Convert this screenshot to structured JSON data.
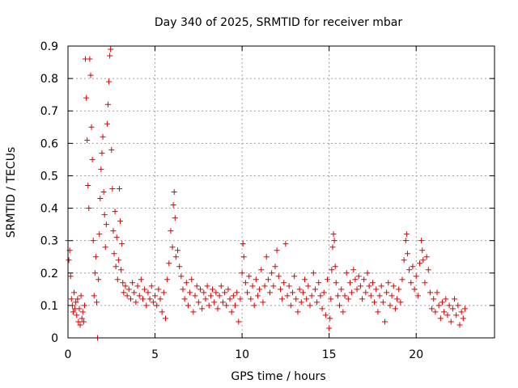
{
  "chart_data": {
    "type": "scatter",
    "title": "Day 340 of 2025, SRMTID for receiver mbar",
    "xlabel": "GPS time / hours",
    "ylabel": "SRMTID / TECUs",
    "xlim": [
      0,
      24.5
    ],
    "ylim": [
      0,
      0.9
    ],
    "x_ticks": [
      0,
      5,
      10,
      15,
      20
    ],
    "x_tick_labels": [
      "0",
      "5",
      "10",
      "15",
      "20"
    ],
    "y_ticks": [
      0,
      0.1,
      0.2,
      0.3,
      0.4,
      0.5,
      0.6,
      0.7,
      0.8,
      0.9
    ],
    "y_tick_labels": [
      "0",
      "0.1",
      "0.2",
      "0.3",
      "0.4",
      "0.5",
      "0.6",
      "0.7",
      "0.8",
      "0.9"
    ],
    "grid": true,
    "marker": "+",
    "color": "#e00000",
    "series": [
      {
        "name": "SRMTID",
        "points": [
          [
            0.0,
            0.3
          ],
          [
            0.05,
            0.24
          ],
          [
            0.1,
            0.27
          ],
          [
            0.15,
            0.19
          ],
          [
            0.2,
            0.12
          ],
          [
            0.25,
            0.1
          ],
          [
            0.3,
            0.08
          ],
          [
            0.35,
            0.14
          ],
          [
            0.4,
            0.09
          ],
          [
            0.45,
            0.11
          ],
          [
            0.5,
            0.07
          ],
          [
            0.55,
            0.12
          ],
          [
            0.6,
            0.05
          ],
          [
            0.65,
            0.09
          ],
          [
            0.7,
            0.04
          ],
          [
            0.75,
            0.13
          ],
          [
            0.8,
            0.06
          ],
          [
            0.85,
            0.08
          ],
          [
            0.9,
            0.05
          ],
          [
            0.95,
            0.1
          ],
          [
            1.0,
            0.86
          ],
          [
            1.05,
            0.74
          ],
          [
            1.1,
            0.61
          ],
          [
            1.15,
            0.47
          ],
          [
            1.2,
            0.4
          ],
          [
            1.25,
            0.86
          ],
          [
            1.3,
            0.81
          ],
          [
            1.35,
            0.65
          ],
          [
            1.4,
            0.55
          ],
          [
            1.45,
            0.3
          ],
          [
            1.5,
            0.13
          ],
          [
            1.55,
            0.2
          ],
          [
            1.6,
            0.25
          ],
          [
            1.65,
            0.11
          ],
          [
            1.7,
            0.0
          ],
          [
            1.75,
            0.18
          ],
          [
            1.8,
            0.32
          ],
          [
            1.85,
            0.43
          ],
          [
            1.9,
            0.52
          ],
          [
            1.95,
            0.57
          ],
          [
            2.0,
            0.62
          ],
          [
            2.05,
            0.45
          ],
          [
            2.1,
            0.38
          ],
          [
            2.15,
            0.28
          ],
          [
            2.2,
            0.35
          ],
          [
            2.25,
            0.66
          ],
          [
            2.3,
            0.72
          ],
          [
            2.35,
            0.79
          ],
          [
            2.4,
            0.87
          ],
          [
            2.45,
            0.89
          ],
          [
            2.5,
            0.58
          ],
          [
            2.55,
            0.46
          ],
          [
            2.6,
            0.33
          ],
          [
            2.65,
            0.26
          ],
          [
            2.7,
            0.39
          ],
          [
            2.75,
            0.22
          ],
          [
            2.8,
            0.31
          ],
          [
            2.85,
            0.18
          ],
          [
            2.9,
            0.24
          ],
          [
            2.95,
            0.46
          ],
          [
            3.0,
            0.36
          ],
          [
            3.05,
            0.21
          ],
          [
            3.1,
            0.29
          ],
          [
            3.15,
            0.17
          ],
          [
            3.2,
            0.14
          ],
          [
            3.3,
            0.16
          ],
          [
            3.4,
            0.13
          ],
          [
            3.5,
            0.15
          ],
          [
            3.6,
            0.12
          ],
          [
            3.7,
            0.17
          ],
          [
            3.8,
            0.14
          ],
          [
            3.9,
            0.11
          ],
          [
            4.0,
            0.16
          ],
          [
            4.1,
            0.13
          ],
          [
            4.2,
            0.18
          ],
          [
            4.3,
            0.12
          ],
          [
            4.4,
            0.15
          ],
          [
            4.5,
            0.1
          ],
          [
            4.6,
            0.14
          ],
          [
            4.7,
            0.12
          ],
          [
            4.8,
            0.16
          ],
          [
            4.9,
            0.11
          ],
          [
            5.0,
            0.13
          ],
          [
            5.1,
            0.1
          ],
          [
            5.2,
            0.15
          ],
          [
            5.3,
            0.12
          ],
          [
            5.4,
            0.08
          ],
          [
            5.5,
            0.14
          ],
          [
            5.6,
            0.06
          ],
          [
            5.7,
            0.18
          ],
          [
            5.8,
            0.23
          ],
          [
            5.9,
            0.33
          ],
          [
            6.0,
            0.28
          ],
          [
            6.05,
            0.41
          ],
          [
            6.1,
            0.45
          ],
          [
            6.15,
            0.37
          ],
          [
            6.2,
            0.25
          ],
          [
            6.3,
            0.27
          ],
          [
            6.4,
            0.22
          ],
          [
            6.5,
            0.19
          ],
          [
            6.6,
            0.15
          ],
          [
            6.7,
            0.12
          ],
          [
            6.8,
            0.17
          ],
          [
            6.9,
            0.1
          ],
          [
            7.0,
            0.14
          ],
          [
            7.1,
            0.18
          ],
          [
            7.2,
            0.08
          ],
          [
            7.3,
            0.13
          ],
          [
            7.4,
            0.16
          ],
          [
            7.5,
            0.11
          ],
          [
            7.6,
            0.15
          ],
          [
            7.7,
            0.09
          ],
          [
            7.8,
            0.14
          ],
          [
            7.9,
            0.12
          ],
          [
            8.0,
            0.16
          ],
          [
            8.1,
            0.1
          ],
          [
            8.2,
            0.13
          ],
          [
            8.3,
            0.15
          ],
          [
            8.4,
            0.11
          ],
          [
            8.5,
            0.14
          ],
          [
            8.6,
            0.09
          ],
          [
            8.7,
            0.13
          ],
          [
            8.8,
            0.16
          ],
          [
            8.9,
            0.11
          ],
          [
            9.0,
            0.14
          ],
          [
            9.1,
            0.1
          ],
          [
            9.2,
            0.15
          ],
          [
            9.3,
            0.12
          ],
          [
            9.4,
            0.08
          ],
          [
            9.5,
            0.13
          ],
          [
            9.6,
            0.1
          ],
          [
            9.7,
            0.14
          ],
          [
            9.8,
            0.05
          ],
          [
            9.9,
            0.12
          ],
          [
            10.0,
            0.2
          ],
          [
            10.05,
            0.29
          ],
          [
            10.1,
            0.25
          ],
          [
            10.2,
            0.17
          ],
          [
            10.3,
            0.14
          ],
          [
            10.4,
            0.19
          ],
          [
            10.5,
            0.12
          ],
          [
            10.6,
            0.16
          ],
          [
            10.7,
            0.1
          ],
          [
            10.8,
            0.18
          ],
          [
            10.9,
            0.13
          ],
          [
            11.0,
            0.15
          ],
          [
            11.1,
            0.21
          ],
          [
            11.2,
            0.11
          ],
          [
            11.3,
            0.16
          ],
          [
            11.4,
            0.25
          ],
          [
            11.5,
            0.18
          ],
          [
            11.6,
            0.14
          ],
          [
            11.7,
            0.2
          ],
          [
            11.8,
            0.16
          ],
          [
            11.9,
            0.22
          ],
          [
            12.0,
            0.27
          ],
          [
            12.1,
            0.19
          ],
          [
            12.2,
            0.15
          ],
          [
            12.3,
            0.12
          ],
          [
            12.4,
            0.17
          ],
          [
            12.5,
            0.29
          ],
          [
            12.6,
            0.13
          ],
          [
            12.7,
            0.16
          ],
          [
            12.8,
            0.1
          ],
          [
            12.9,
            0.14
          ],
          [
            13.0,
            0.19
          ],
          [
            13.1,
            0.12
          ],
          [
            13.2,
            0.08
          ],
          [
            13.3,
            0.15
          ],
          [
            13.4,
            0.11
          ],
          [
            13.5,
            0.14
          ],
          [
            13.6,
            0.18
          ],
          [
            13.7,
            0.12
          ],
          [
            13.8,
            0.16
          ],
          [
            13.9,
            0.1
          ],
          [
            14.0,
            0.13
          ],
          [
            14.1,
            0.2
          ],
          [
            14.2,
            0.15
          ],
          [
            14.3,
            0.11
          ],
          [
            14.4,
            0.17
          ],
          [
            14.5,
            0.13
          ],
          [
            14.6,
            0.09
          ],
          [
            14.7,
            0.14
          ],
          [
            14.8,
            0.07
          ],
          [
            14.9,
            0.18
          ],
          [
            15.0,
            0.03
          ],
          [
            15.05,
            0.06
          ],
          [
            15.1,
            0.12
          ],
          [
            15.15,
            0.21
          ],
          [
            15.2,
            0.28
          ],
          [
            15.25,
            0.32
          ],
          [
            15.3,
            0.3
          ],
          [
            15.35,
            0.22
          ],
          [
            15.4,
            0.17
          ],
          [
            15.5,
            0.13
          ],
          [
            15.6,
            0.1
          ],
          [
            15.7,
            0.15
          ],
          [
            15.8,
            0.08
          ],
          [
            15.9,
            0.13
          ],
          [
            16.0,
            0.2
          ],
          [
            16.1,
            0.12
          ],
          [
            16.2,
            0.17
          ],
          [
            16.3,
            0.14
          ],
          [
            16.4,
            0.21
          ],
          [
            16.5,
            0.18
          ],
          [
            16.6,
            0.15
          ],
          [
            16.7,
            0.19
          ],
          [
            16.8,
            0.16
          ],
          [
            16.9,
            0.12
          ],
          [
            17.0,
            0.18
          ],
          [
            17.1,
            0.14
          ],
          [
            17.2,
            0.2
          ],
          [
            17.3,
            0.16
          ],
          [
            17.4,
            0.13
          ],
          [
            17.5,
            0.17
          ],
          [
            17.6,
            0.11
          ],
          [
            17.7,
            0.15
          ],
          [
            17.8,
            0.08
          ],
          [
            17.9,
            0.13
          ],
          [
            18.0,
            0.16
          ],
          [
            18.1,
            0.11
          ],
          [
            18.2,
            0.05
          ],
          [
            18.3,
            0.14
          ],
          [
            18.4,
            0.17
          ],
          [
            18.5,
            0.1
          ],
          [
            18.6,
            0.13
          ],
          [
            18.7,
            0.16
          ],
          [
            18.8,
            0.09
          ],
          [
            18.9,
            0.12
          ],
          [
            19.0,
            0.15
          ],
          [
            19.1,
            0.11
          ],
          [
            19.2,
            0.18
          ],
          [
            19.3,
            0.24
          ],
          [
            19.4,
            0.3
          ],
          [
            19.45,
            0.32
          ],
          [
            19.5,
            0.26
          ],
          [
            19.6,
            0.21
          ],
          [
            19.7,
            0.17
          ],
          [
            19.8,
            0.22
          ],
          [
            19.9,
            0.15
          ],
          [
            20.0,
            0.19
          ],
          [
            20.1,
            0.13
          ],
          [
            20.2,
            0.23
          ],
          [
            20.3,
            0.3
          ],
          [
            20.35,
            0.27
          ],
          [
            20.4,
            0.24
          ],
          [
            20.5,
            0.17
          ],
          [
            20.6,
            0.25
          ],
          [
            20.7,
            0.21
          ],
          [
            20.8,
            0.14
          ],
          [
            20.9,
            0.09
          ],
          [
            21.0,
            0.12
          ],
          [
            21.1,
            0.08
          ],
          [
            21.2,
            0.14
          ],
          [
            21.3,
            0.1
          ],
          [
            21.4,
            0.06
          ],
          [
            21.5,
            0.11
          ],
          [
            21.6,
            0.08
          ],
          [
            21.7,
            0.12
          ],
          [
            21.8,
            0.07
          ],
          [
            21.9,
            0.1
          ],
          [
            22.0,
            0.05
          ],
          [
            22.1,
            0.09
          ],
          [
            22.2,
            0.12
          ],
          [
            22.3,
            0.07
          ],
          [
            22.4,
            0.1
          ],
          [
            22.5,
            0.04
          ],
          [
            22.6,
            0.08
          ],
          [
            22.7,
            0.06
          ],
          [
            22.8,
            0.09
          ]
        ]
      }
    ]
  }
}
